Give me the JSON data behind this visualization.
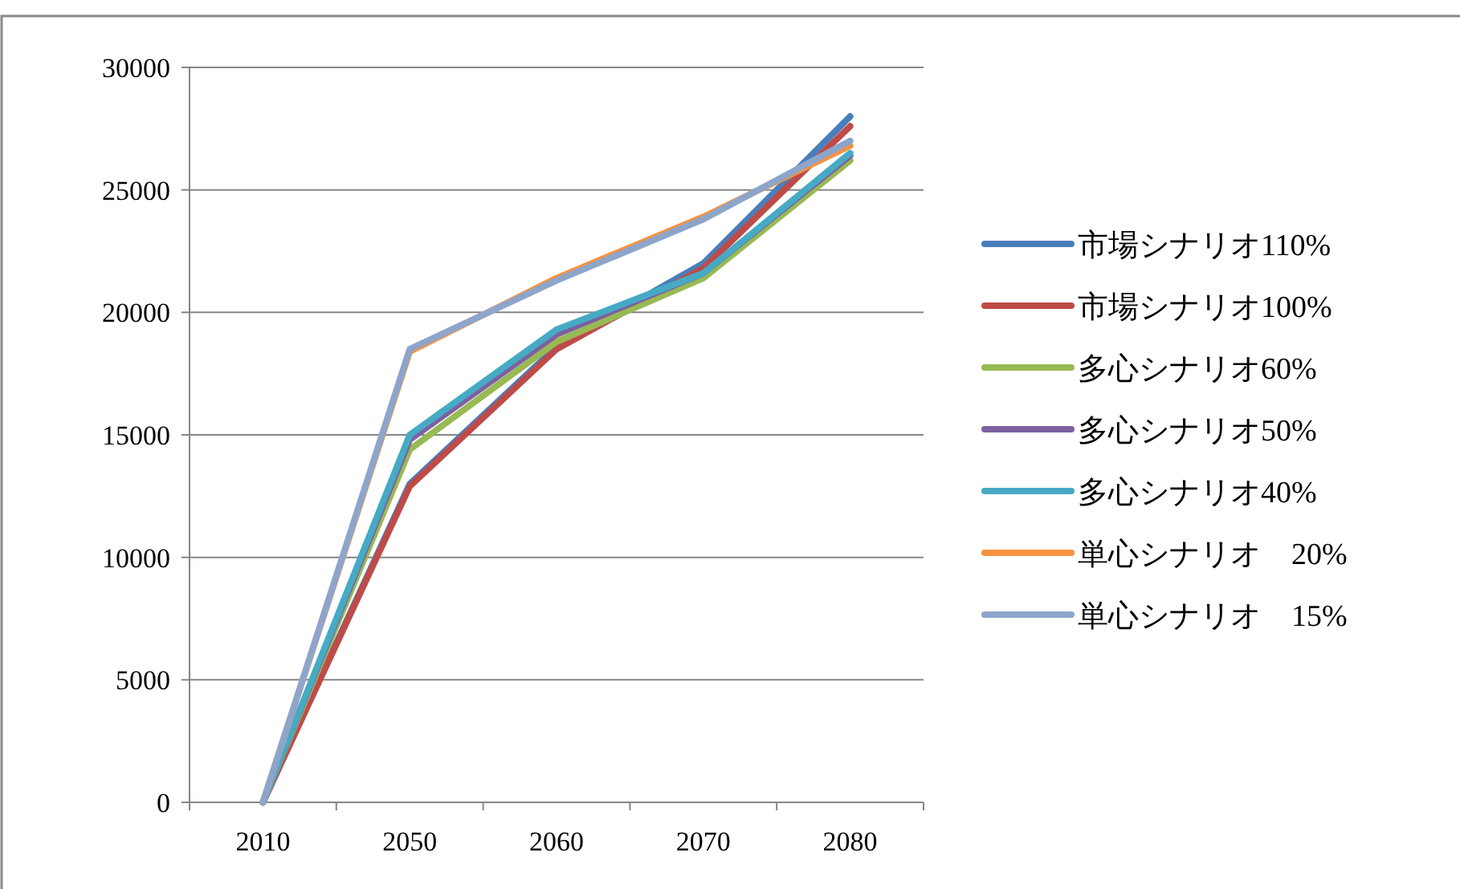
{
  "chart_data": {
    "type": "line",
    "categories": [
      "2010",
      "2050",
      "2060",
      "2070",
      "2080"
    ],
    "series": [
      {
        "name": "市場シナリオ110%",
        "color": "#4a7ebb",
        "values": [
          0,
          13000,
          18600,
          22000,
          28000
        ]
      },
      {
        "name": "市場シナリオ100%",
        "color": "#be4b48",
        "values": [
          0,
          12900,
          18500,
          21800,
          27600
        ]
      },
      {
        "name": "多心シナリオ60%",
        "color": "#98b954",
        "values": [
          0,
          14400,
          18800,
          21400,
          26200
        ]
      },
      {
        "name": "多心シナリオ50%",
        "color": "#7d60a0",
        "values": [
          0,
          14800,
          19100,
          21600,
          26400
        ]
      },
      {
        "name": "多心シナリオ40%",
        "color": "#46aac5",
        "values": [
          0,
          15000,
          19300,
          21600,
          26500
        ]
      },
      {
        "name": "単心シナリオ　20%",
        "color": "#f69240",
        "values": [
          0,
          18400,
          21400,
          23900,
          26800
        ]
      },
      {
        "name": "単心シナリオ　15%",
        "color": "#8ea5cb",
        "values": [
          0,
          18500,
          21300,
          23800,
          27000
        ]
      }
    ],
    "ylim": [
      0,
      30000
    ],
    "yticks": [
      0,
      5000,
      10000,
      15000,
      20000,
      25000,
      30000
    ],
    "grid": "y",
    "legend": "right"
  }
}
